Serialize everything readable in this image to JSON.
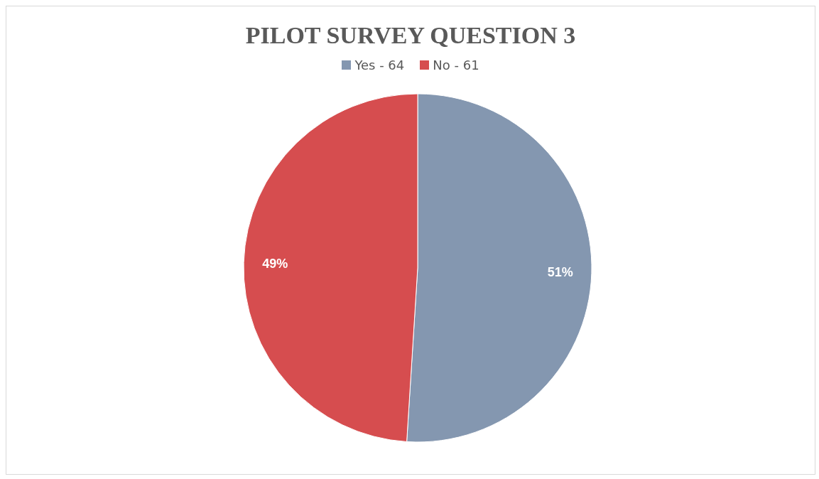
{
  "chart_data": {
    "type": "pie",
    "title": "PILOT SURVEY QUESTION 3",
    "categories": [
      "Yes - 64",
      "No - 61"
    ],
    "values": [
      51,
      49
    ],
    "colors": [
      "#8497b0",
      "#d64d4f"
    ],
    "value_labels": [
      "51%",
      "49%"
    ],
    "legend": "top"
  }
}
